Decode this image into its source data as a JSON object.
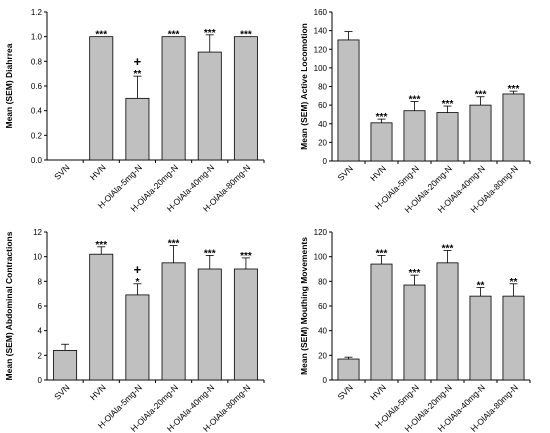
{
  "chart_data": [
    {
      "type": "bar",
      "categories": [
        "SVN",
        "HVN",
        "H-OlAla-5mg-N",
        "H-OlAla-20mg-N",
        "H-OlAla-40mg-N",
        "H-OlAla-80mg-N"
      ],
      "values": [
        0,
        1.0,
        0.5,
        1.0,
        0.875,
        1.0
      ],
      "errors": [
        0,
        0,
        0.18,
        0,
        0.14,
        0
      ],
      "significance": [
        "",
        "***",
        "**",
        "***",
        "***",
        "***"
      ],
      "markers": [
        "",
        "",
        "+",
        "",
        "",
        ""
      ],
      "ylabel": "Mean (SEM) Diahrrea",
      "ylim": [
        0,
        1.2
      ],
      "yticks": [
        0.0,
        0.2,
        0.4,
        0.6,
        0.8,
        1.0,
        1.2
      ],
      "ytick_labels": [
        "0.0",
        "0.2",
        "0.4",
        "0.6",
        "0.8",
        "1.0",
        "1.2"
      ]
    },
    {
      "type": "bar",
      "categories": [
        "SVN",
        "HVN",
        "H-OlAla-5mg-N",
        "H-OlAla-20mg-N",
        "H-OlAla-40mg-N",
        "H-OlAla-80mg-N"
      ],
      "values": [
        130,
        41,
        54,
        52,
        60,
        72
      ],
      "errors": [
        9,
        4,
        10,
        7,
        9,
        3
      ],
      "significance": [
        "",
        "***",
        "***",
        "***",
        "***",
        "***"
      ],
      "markers": [
        "",
        "",
        "",
        "",
        "",
        ""
      ],
      "ylabel": "Mean (SEM) Active Locomotion",
      "ylim": [
        0,
        160
      ],
      "yticks": [
        0,
        20,
        40,
        60,
        80,
        100,
        120,
        140,
        160
      ],
      "ytick_labels": [
        "0",
        "20",
        "40",
        "60",
        "80",
        "100",
        "120",
        "140",
        "160"
      ]
    },
    {
      "type": "bar",
      "categories": [
        "SVN",
        "HVN",
        "H-OlAla-5mg-N",
        "H-OlAla-20mg-N",
        "H-OlAla-40mg-N",
        "H-OlAla-80mg-N"
      ],
      "values": [
        2.4,
        10.2,
        6.9,
        9.5,
        9.0,
        9.0
      ],
      "errors": [
        0.5,
        0.6,
        0.9,
        1.4,
        1.1,
        0.9
      ],
      "significance": [
        "",
        "***",
        "*",
        "***",
        "***",
        "***"
      ],
      "markers": [
        "",
        "",
        "+",
        "",
        "",
        ""
      ],
      "ylabel": "Mean (SEM) Abdominal Contractions",
      "ylim": [
        0,
        12
      ],
      "yticks": [
        0,
        2,
        4,
        6,
        8,
        10,
        12
      ],
      "ytick_labels": [
        "0",
        "2",
        "4",
        "6",
        "8",
        "10",
        "12"
      ]
    },
    {
      "type": "bar",
      "categories": [
        "SVN",
        "HVN",
        "H-OlAla-5mg-N",
        "H-OlAla-20mg-N",
        "H-OlAla-40mg-N",
        "H-OlAla-80mg-N"
      ],
      "values": [
        17,
        94,
        77,
        95,
        68,
        68
      ],
      "errors": [
        1.5,
        7,
        8,
        10,
        7,
        10
      ],
      "significance": [
        "",
        "***",
        "***",
        "***",
        "**",
        "**"
      ],
      "markers": [
        "",
        "",
        "",
        "",
        "",
        ""
      ],
      "ylabel": "Mean (SEM) Mouthing Movements",
      "ylim": [
        0,
        120
      ],
      "yticks": [
        0,
        20,
        40,
        60,
        80,
        100,
        120
      ],
      "ytick_labels": [
        "0",
        "20",
        "40",
        "60",
        "80",
        "100",
        "120"
      ]
    }
  ]
}
